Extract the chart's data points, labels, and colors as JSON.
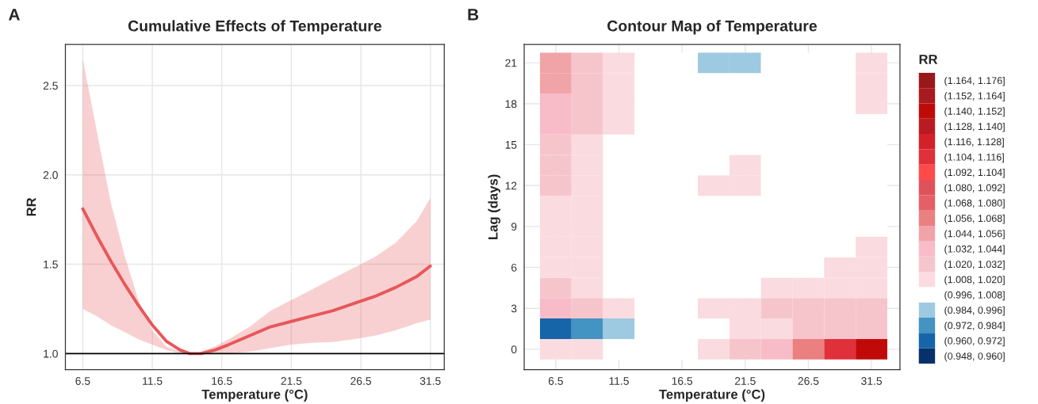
{
  "chart_data": [
    {
      "type": "line",
      "title": "Cumulative Effects of Temperature",
      "xlabel": "Temperature (°C)",
      "ylabel": "RR",
      "annotations": [
        "A"
      ],
      "x": [
        6.5,
        7.5,
        8.5,
        9.5,
        10.5,
        11.5,
        12.5,
        13.5,
        14.2,
        15,
        16,
        17,
        18.5,
        20,
        21.5,
        23,
        24.5,
        26,
        27.5,
        29,
        30.5,
        31.5
      ],
      "series": [
        {
          "color": "#e8575a",
          "values": [
            1.81,
            1.66,
            1.52,
            1.39,
            1.27,
            1.16,
            1.07,
            1.02,
            1.0,
            1.0,
            1.02,
            1.05,
            1.1,
            1.15,
            1.18,
            1.21,
            1.24,
            1.28,
            1.32,
            1.37,
            1.43,
            1.49
          ],
          "lower": [
            1.25,
            1.21,
            1.16,
            1.12,
            1.08,
            1.05,
            1.02,
            1.0,
            1.0,
            1.0,
            1.0,
            1.0,
            1.01,
            1.03,
            1.05,
            1.06,
            1.065,
            1.08,
            1.1,
            1.13,
            1.17,
            1.19
          ],
          "upper": [
            2.65,
            2.25,
            1.85,
            1.55,
            1.3,
            1.13,
            1.04,
            1.01,
            1.0,
            1.01,
            1.04,
            1.08,
            1.15,
            1.24,
            1.3,
            1.36,
            1.42,
            1.48,
            1.54,
            1.62,
            1.74,
            1.87
          ]
        }
      ],
      "xlim": [
        5.25,
        32.5
      ],
      "xticks": [
        6.5,
        11.5,
        16.5,
        21.5,
        26.5,
        31.5
      ],
      "ylim": [
        0.91,
        2.73
      ],
      "yticks": [
        {
          "value": 1,
          "label": "1.0"
        },
        1.5,
        {
          "value": 2,
          "label": "2.0"
        },
        2.5
      ],
      "ref_lines": [
        {
          "axis": "y",
          "value": 1.0,
          "color": "#000000"
        }
      ],
      "grid": true,
      "legend": false,
      "marker": "none",
      "line_style": "solid"
    },
    {
      "type": "heatmap",
      "title": "Contour Map of Temperature",
      "xlabel": "Temperature (°C)",
      "ylabel": "Lag (days)",
      "clabel": "RR",
      "annotations": [
        "B"
      ],
      "categories": [
        "6.5",
        null,
        "11.5",
        null,
        "16.5",
        null,
        "21.5",
        null,
        "26.5",
        null,
        "31.5"
      ],
      "y_categories": [
        "21",
        null,
        "18",
        null,
        "15",
        null,
        "12",
        null,
        "9",
        null,
        "6",
        null,
        "3",
        null,
        "0"
      ],
      "cells": [
        [
          1.05,
          1.026,
          1.014,
          1.002,
          1.002,
          0.99,
          0.99,
          1.002,
          1.002,
          1.002,
          1.014
        ],
        [
          1.05,
          1.026,
          1.014,
          1.002,
          1.002,
          1.002,
          1.002,
          1.002,
          1.002,
          1.002,
          1.014
        ],
        [
          1.038,
          1.026,
          1.014,
          1.002,
          1.002,
          1.002,
          1.002,
          1.002,
          1.002,
          1.002,
          1.014
        ],
        [
          1.038,
          1.026,
          1.014,
          1.002,
          1.002,
          1.002,
          1.002,
          1.002,
          1.002,
          1.002,
          1.002
        ],
        [
          1.026,
          1.014,
          1.002,
          1.002,
          1.002,
          1.002,
          1.002,
          1.002,
          1.002,
          1.002,
          1.002
        ],
        [
          1.026,
          1.014,
          1.002,
          1.002,
          1.002,
          1.002,
          1.014,
          1.002,
          1.002,
          1.002,
          1.002
        ],
        [
          1.026,
          1.014,
          1.002,
          1.002,
          1.002,
          1.014,
          1.014,
          1.002,
          1.002,
          1.002,
          1.002
        ],
        [
          1.014,
          1.014,
          1.002,
          1.002,
          1.002,
          1.002,
          1.002,
          1.002,
          1.002,
          1.002,
          1.002
        ],
        [
          1.014,
          1.014,
          1.002,
          1.002,
          1.002,
          1.002,
          1.002,
          1.002,
          1.002,
          1.002,
          1.002
        ],
        [
          1.014,
          1.014,
          1.002,
          1.002,
          1.002,
          1.002,
          1.002,
          1.002,
          1.002,
          1.002,
          1.014
        ],
        [
          1.014,
          1.014,
          1.002,
          1.002,
          1.002,
          1.002,
          1.002,
          1.002,
          1.002,
          1.014,
          1.014
        ],
        [
          1.026,
          1.014,
          1.002,
          1.002,
          1.002,
          1.002,
          1.002,
          1.014,
          1.014,
          1.014,
          1.014
        ],
        [
          1.038,
          1.026,
          1.014,
          1.002,
          1.002,
          1.014,
          1.014,
          1.026,
          1.026,
          1.026,
          1.026
        ],
        [
          0.966,
          0.978,
          0.99,
          1.002,
          1.002,
          1.002,
          1.014,
          1.014,
          1.026,
          1.026,
          1.026
        ],
        [
          1.014,
          1.014,
          1.002,
          1.002,
          1.002,
          1.014,
          1.026,
          1.038,
          1.062,
          1.11,
          1.146
        ]
      ],
      "colors": [
        "#08306b",
        "#1565a8",
        "#4393c3",
        "#9ecae1",
        "#ffffff",
        "#fadbe0",
        "#f6c5cc",
        "#f8bcc8",
        "#f0a4a8",
        "#ea8080",
        "#e56066",
        "#e0525a",
        "#ff4a4a",
        "#e0303a",
        "#d42028",
        "#b81c22",
        "#c00a0a",
        "#a81a1f",
        "#99191b"
      ],
      "clim": [
        0.948,
        1.176
      ],
      "cticks": [
        {
          "value": 0.954,
          "label": "(0.948, 0.960]"
        },
        {
          "value": 0.966,
          "label": "(0.960, 0.972]"
        },
        {
          "value": 0.978,
          "label": "(0.972, 0.984]"
        },
        {
          "value": 0.99,
          "label": "(0.984, 0.996]"
        },
        {
          "value": 1.002,
          "label": "(0.996, 1.008]"
        },
        {
          "value": 1.014,
          "label": "(1.008, 1.020]"
        },
        {
          "value": 1.026,
          "label": "(1.020, 1.032]"
        },
        {
          "value": 1.038,
          "label": "(1.032, 1.044]"
        },
        {
          "value": 1.05,
          "label": "(1.044, 1.056]"
        },
        {
          "value": 1.062,
          "label": "(1.056, 1.068]"
        },
        {
          "value": 1.074,
          "label": "(1.068, 1.080]"
        },
        {
          "value": 1.086,
          "label": "(1.080, 1.092]"
        },
        {
          "value": 1.098,
          "label": "(1.092, 1.104]"
        },
        {
          "value": 1.11,
          "label": "(1.104, 1.116]"
        },
        {
          "value": 1.122,
          "label": "(1.116, 1.128]"
        },
        {
          "value": 1.134,
          "label": "(1.128, 1.140]"
        },
        {
          "value": 1.146,
          "label": "(1.140, 1.152]"
        },
        {
          "value": 1.158,
          "label": "(1.152, 1.164]"
        },
        {
          "value": 1.17,
          "label": "(1.164, 1.176]"
        }
      ],
      "grid": true
    }
  ]
}
